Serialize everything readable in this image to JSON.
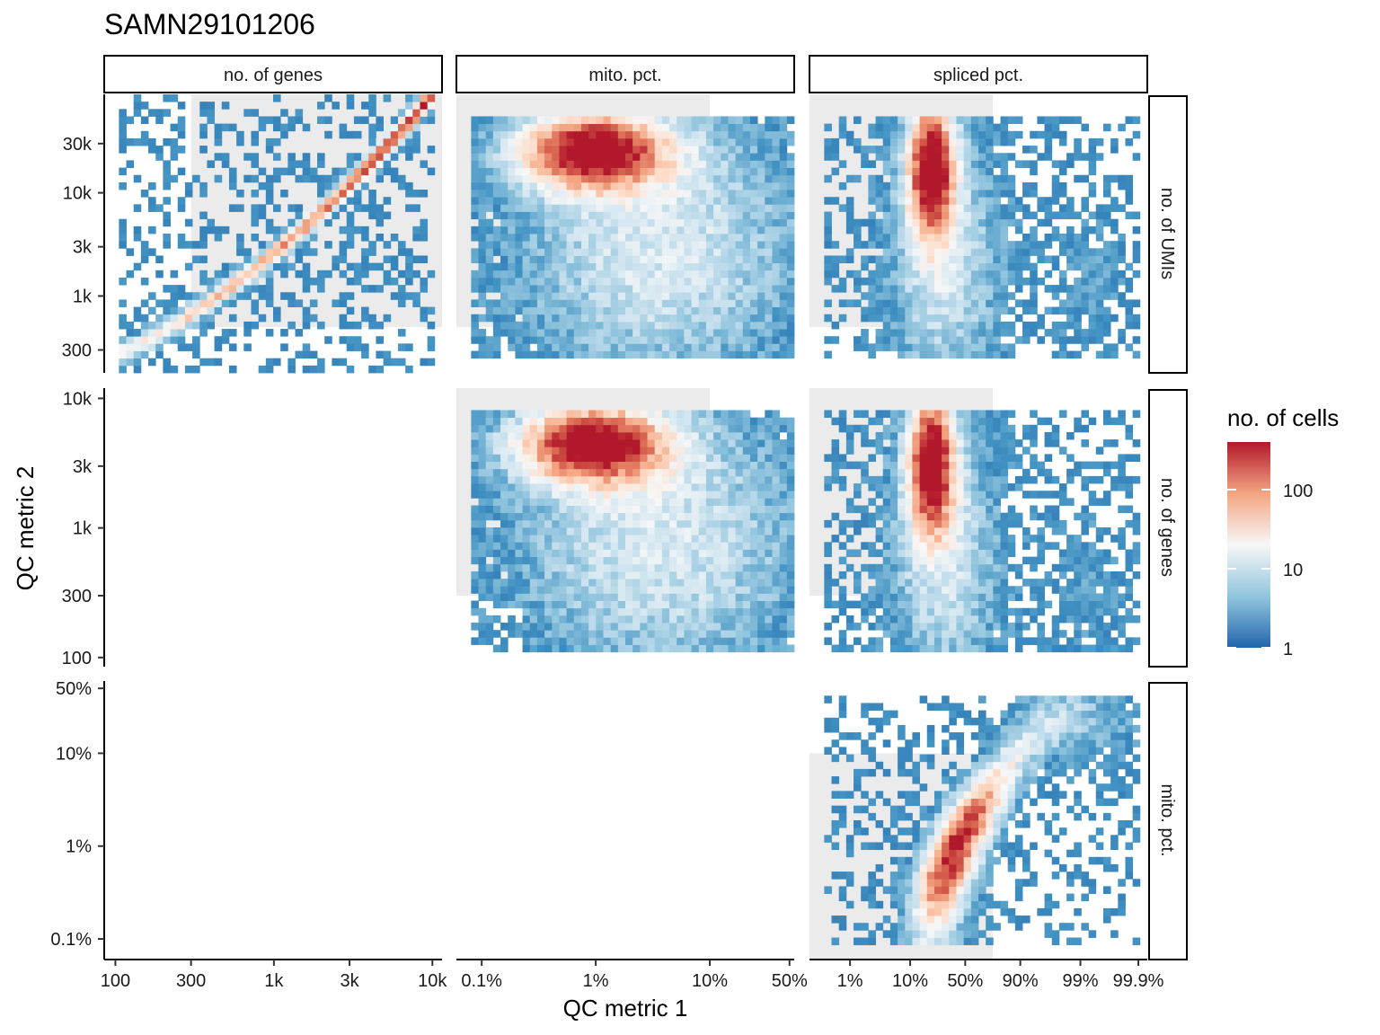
{
  "chart_data": {
    "type": "heatmap",
    "title": "SAMN29101206",
    "xlabel": "QC metric 1",
    "ylabel": "QC metric 2",
    "columns": [
      "no. of genes",
      "mito. pct.",
      "spliced pct."
    ],
    "rows": [
      "no. of UMIs",
      "no. of genes",
      "mito. pct."
    ],
    "legend": {
      "title": "no. of cells",
      "ticks": [
        "100",
        "10",
        "1"
      ],
      "tick_values": [
        100,
        10,
        1
      ],
      "range": [
        1,
        400
      ],
      "scale": "log",
      "colors": [
        "#2166ac",
        "#f7f7f7",
        "#b2182b"
      ],
      "position": "right"
    },
    "x_axes": [
      {
        "variable": "no. of genes",
        "scale": "log",
        "ticks": [
          "100",
          "300",
          "1k",
          "3k",
          "10k"
        ],
        "tick_values": [
          100,
          300,
          1000,
          3000,
          10000
        ],
        "range": [
          85,
          11500
        ],
        "threshold_min": 300
      },
      {
        "variable": "mito. pct.",
        "scale": "log",
        "ticks": [
          "0.1%",
          "1%",
          "10%",
          "50%"
        ],
        "tick_values": [
          0.1,
          1,
          10,
          50
        ],
        "range": [
          0.06,
          55
        ],
        "threshold_max": 10
      },
      {
        "variable": "spliced pct.",
        "scale": "logit",
        "ticks": [
          "1%",
          "10%",
          "50%",
          "90%",
          "99%",
          "99.9%"
        ],
        "tick_values": [
          1,
          10,
          50,
          90,
          99,
          99.9
        ],
        "range": [
          0.2,
          99.93
        ],
        "threshold_max": 75
      }
    ],
    "y_axes": [
      {
        "variable": "no. of UMIs",
        "scale": "log",
        "ticks": [
          "30k",
          "10k",
          "3k",
          "1k",
          "300"
        ],
        "tick_values": [
          30000,
          10000,
          3000,
          1000,
          300
        ],
        "range": [
          180,
          90000
        ],
        "threshold_min": 500
      },
      {
        "variable": "no. of genes",
        "scale": "log",
        "ticks": [
          "10k",
          "3k",
          "1k",
          "300",
          "100"
        ],
        "tick_values": [
          10000,
          3000,
          1000,
          300,
          100
        ],
        "range": [
          85,
          12000
        ],
        "threshold_min": 300
      },
      {
        "variable": "mito. pct.",
        "scale": "log",
        "ticks": [
          "50%",
          "10%",
          "1%",
          "0.1%"
        ],
        "tick_values": [
          50,
          10,
          1,
          0.1
        ],
        "range": [
          0.06,
          60
        ],
        "threshold_max": 10
      }
    ],
    "panels": [
      {
        "row": 0,
        "col": 0,
        "shape": "diagonal"
      },
      {
        "row": 0,
        "col": 1,
        "shape": "blob"
      },
      {
        "row": 0,
        "col": 2,
        "shape": "column"
      },
      {
        "row": 1,
        "col": 1,
        "shape": "blob"
      },
      {
        "row": 1,
        "col": 2,
        "shape": "column"
      },
      {
        "row": 2,
        "col": 2,
        "shape": "ridge"
      }
    ]
  }
}
